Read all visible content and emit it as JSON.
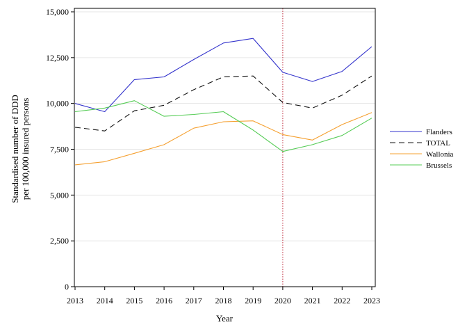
{
  "chart_data": {
    "type": "line",
    "xlabel": "Year",
    "ylabel": [
      "Standardised number of DDD",
      "per 100,000 insured persons"
    ],
    "x": [
      "2013",
      "2014",
      "2015",
      "2016",
      "2017",
      "2018",
      "2019",
      "2020",
      "2021",
      "2022",
      "2023"
    ],
    "ylim": [
      0,
      15000
    ],
    "yticks": [
      "0",
      "2,500",
      "5,000",
      "7,500",
      "10,000",
      "12,500",
      "15,000"
    ],
    "ytick_values": [
      0,
      2500,
      5000,
      7500,
      10000,
      12500,
      15000
    ],
    "grid": "horizontal",
    "legend_position": "right",
    "reference_line": {
      "x": "2020",
      "color": "#c03040",
      "style": "dotted"
    },
    "series": [
      {
        "name": "Flanders",
        "color": "#3333cc",
        "dash": "solid",
        "values": [
          10000,
          9550,
          11300,
          11450,
          12400,
          13300,
          13550,
          11700,
          11200,
          11750,
          13100
        ]
      },
      {
        "name": "TOTAL",
        "color": "#111111",
        "dash": "dashed",
        "values": [
          8700,
          8500,
          9600,
          9900,
          10750,
          11450,
          11500,
          10050,
          9750,
          10450,
          11500
        ]
      },
      {
        "name": "Wallonia",
        "color": "#f5a030",
        "dash": "solid",
        "values": [
          6650,
          6820,
          7280,
          7750,
          8650,
          9000,
          9050,
          8300,
          8000,
          8850,
          9500
        ]
      },
      {
        "name": "Brussels",
        "color": "#55cc55",
        "dash": "solid",
        "values": [
          9550,
          9750,
          10150,
          9300,
          9400,
          9550,
          8550,
          7380,
          7750,
          8250,
          9200
        ]
      }
    ]
  }
}
